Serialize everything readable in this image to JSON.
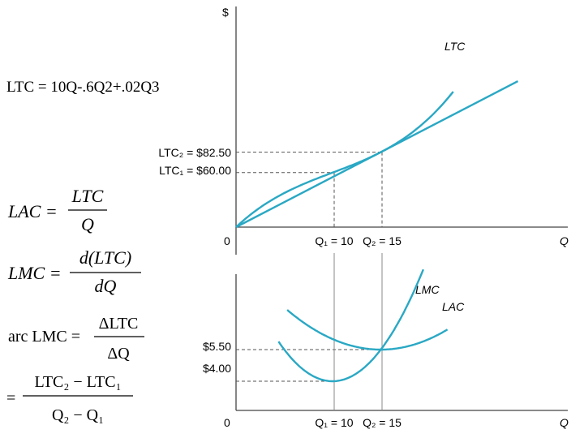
{
  "formulas": {
    "ltc_eq": "LTC = 10Q-.6Q2+.02Q3",
    "lac": {
      "lhs": "LAC =",
      "num": "LTC",
      "den": "Q"
    },
    "lmc": {
      "lhs": "LMC =",
      "num": "d(LTC)",
      "den": "dQ"
    },
    "arc": {
      "lhs": "arc LMC =",
      "num": "ΔLTC",
      "den": "ΔQ"
    },
    "arc2": {
      "eq": "=",
      "num": "LTC₂ − LTC₁",
      "den": "Q₂ − Q₁"
    }
  },
  "chart_data": [
    {
      "type": "line",
      "ylabel": "$",
      "xlabel": "Q",
      "origin_label": "0",
      "series": [
        {
          "name": "LTC",
          "formula": "10Q - 0.6Q^2 + 0.02Q^3",
          "color": "#2aa8c4"
        },
        {
          "name": "",
          "kind": "ray from origin",
          "slope": 5.5,
          "color": "#2aa8c4"
        }
      ],
      "y_ticks": [
        {
          "label": "LTC₂ = $82.50",
          "value": 82.5
        },
        {
          "label": "LTC₁ = $60.00",
          "value": 60.0
        }
      ],
      "x_ticks": [
        {
          "label": "Q₁ = 10",
          "value": 10
        },
        {
          "label": "Q₂ = 15",
          "value": 15
        }
      ]
    },
    {
      "type": "line",
      "xlabel": "Q",
      "origin_label": "0",
      "series": [
        {
          "name": "LMC",
          "formula": "10 - 1.2Q + 0.06Q^2",
          "color": "#2aa8c4"
        },
        {
          "name": "LAC",
          "formula": "10 - 0.6Q + 0.02Q^2",
          "color": "#2aa8c4"
        }
      ],
      "y_ticks": [
        {
          "label": "$5.50",
          "value": 5.5
        },
        {
          "label": "$4.00",
          "value": 4.0
        }
      ],
      "x_ticks": [
        {
          "label": "Q₁ = 10",
          "value": 10
        },
        {
          "label": "Q₂ = 15",
          "value": 15
        }
      ]
    }
  ]
}
